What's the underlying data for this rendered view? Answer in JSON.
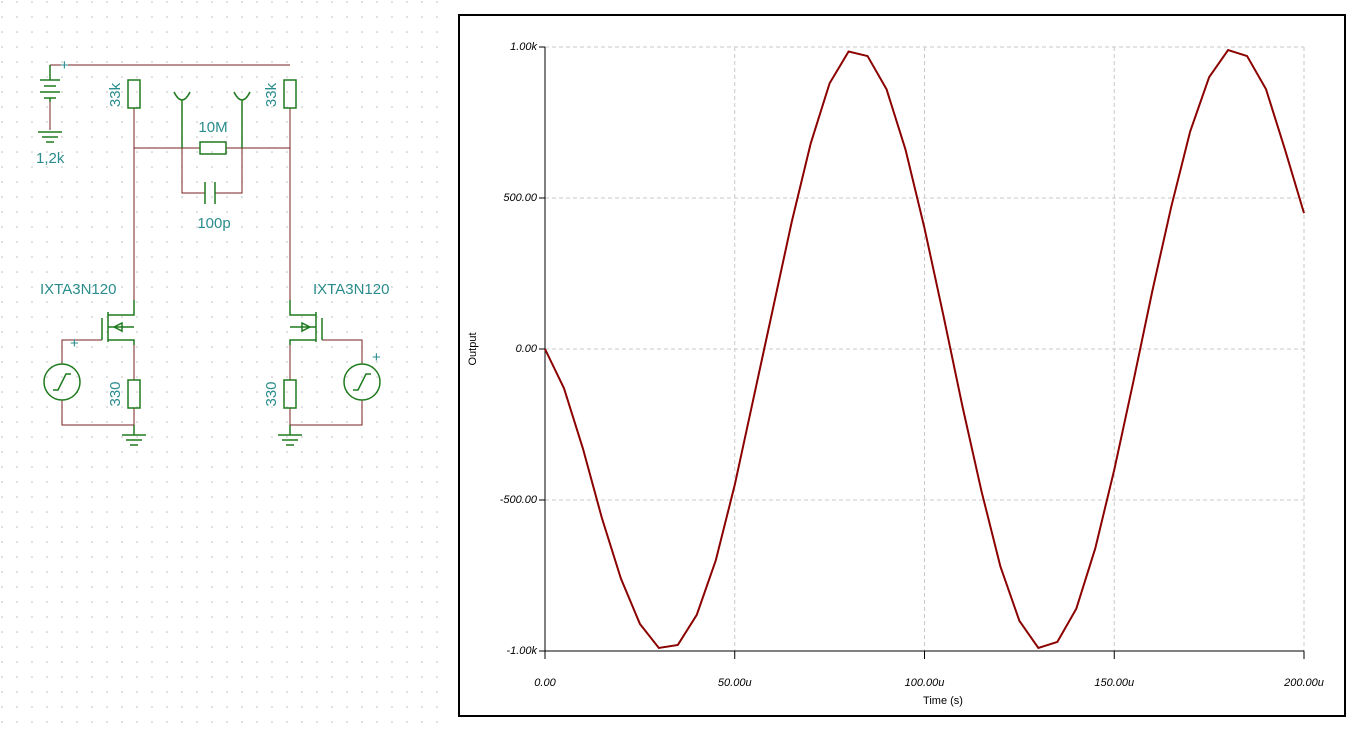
{
  "schematic": {
    "polarity": "+",
    "battery": "1,2k",
    "r_left": "33k",
    "r_right": "33k",
    "r_bridge": "10M",
    "cap": "100p",
    "mosfet_left": "IXTA3N120",
    "mosfet_right": "IXTA3N120",
    "r_src_left": "330",
    "r_src_right": "330"
  },
  "chart_data": {
    "type": "line",
    "x_label": "Time (s)",
    "y_label": "Output",
    "x": [
      0,
      5,
      10,
      15,
      20,
      25,
      30,
      35,
      40,
      45,
      50,
      55,
      60,
      65,
      70,
      75,
      80,
      85,
      90,
      95,
      100,
      105,
      110,
      115,
      120,
      125,
      130,
      135,
      140,
      145,
      150,
      155,
      160,
      165,
      170,
      175,
      180,
      185,
      190,
      195,
      200
    ],
    "series": [
      {
        "color": "#8b0000",
        "values": [
          0,
          -130,
          -330,
          -560,
          -760,
          -910,
          -990,
          -980,
          -880,
          -700,
          -450,
          -160,
          130,
          420,
          680,
          880,
          985,
          970,
          860,
          660,
          400,
          110,
          -190,
          -470,
          -720,
          -900,
          -990,
          -970,
          -860,
          -660,
          -400,
          -110,
          190,
          470,
          720,
          900,
          990,
          970,
          860,
          660,
          450
        ]
      }
    ],
    "xlim": [
      0,
      200
    ],
    "ylim": [
      -1000,
      1000
    ],
    "xticks": [
      {
        "value": 0,
        "label": "0.00"
      },
      {
        "value": 50,
        "label": "50.00u"
      },
      {
        "value": 100,
        "label": "100.00u"
      },
      {
        "value": 150,
        "label": "150.00u"
      },
      {
        "value": 200,
        "label": "200.00u"
      }
    ],
    "yticks": [
      {
        "value": -1000,
        "label": "-1.00k"
      },
      {
        "value": -500,
        "label": "-500.00"
      },
      {
        "value": 0,
        "label": "0.00"
      },
      {
        "value": 500,
        "label": "500.00"
      },
      {
        "value": 1000,
        "label": "1.00k"
      }
    ],
    "grid": true
  }
}
